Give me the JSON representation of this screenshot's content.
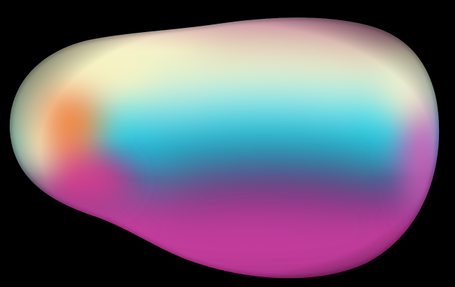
{
  "scene": {
    "background_color": "#000000",
    "subject": "iridescent-blob",
    "palette": {
      "magenta": "#c23a96",
      "deep_magenta": "#8f2a78",
      "cream": "#f3f6c9",
      "pale_yellow": "#fbf7d0",
      "orange": "#f08a4a",
      "cyan": "#22e0ee",
      "teal": "#2aa6c8",
      "indigo": "#3a3478",
      "pink_edge": "#e07ac4"
    }
  }
}
